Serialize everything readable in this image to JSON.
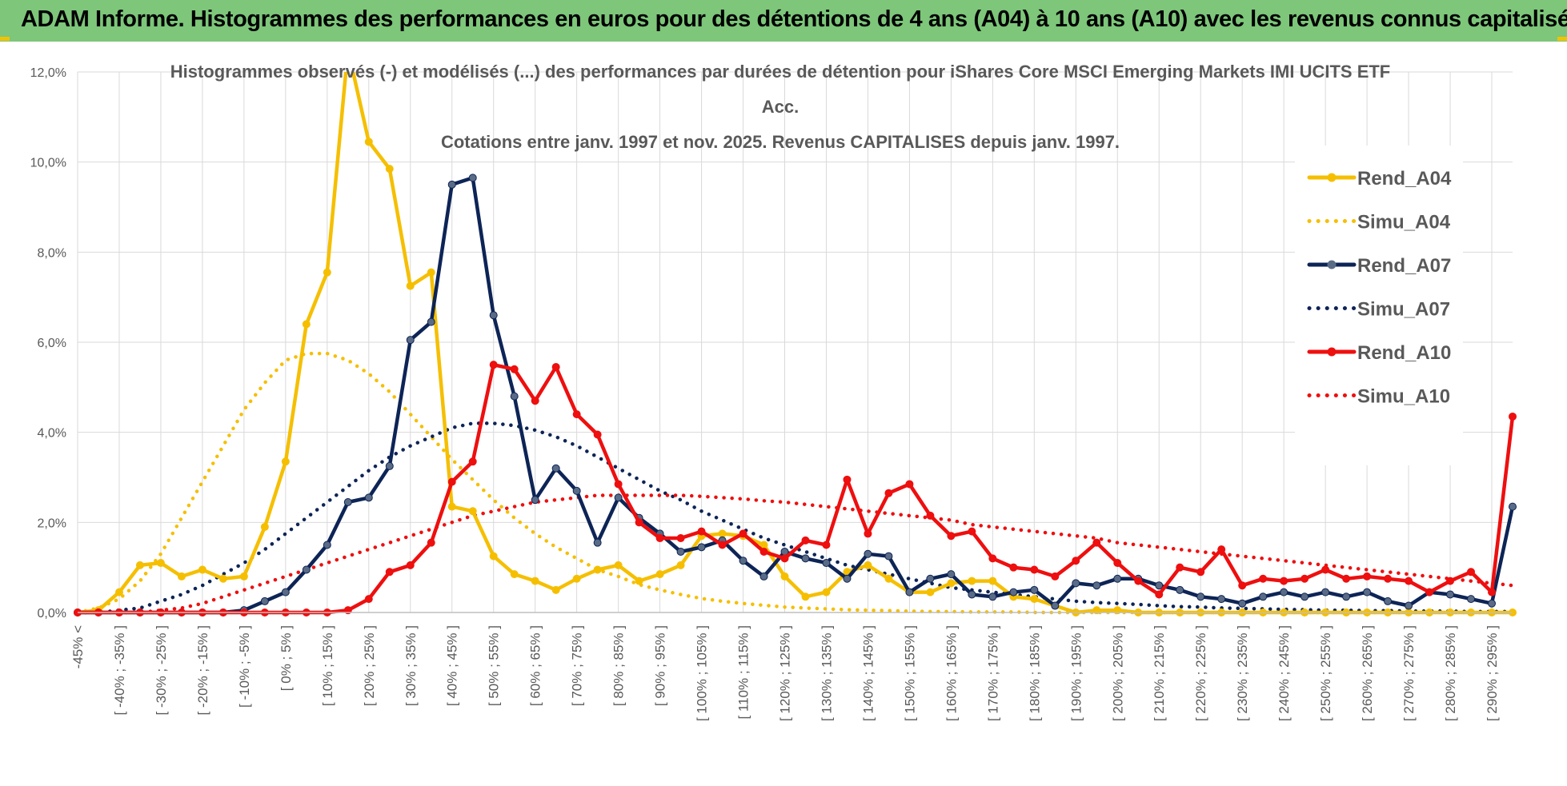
{
  "header": {
    "title": "ADAM Informe. Histogrammes des performances en euros pour des détentions de 4 ans (A04) à 10 ans (A10) avec les revenus connus capitalisés"
  },
  "colors": {
    "banner": "#7dc67a",
    "A04": "#f5bf00",
    "A07": "#0d2456",
    "A10": "#ee0f0f",
    "grid": "#d9d9d9",
    "text": "#595959"
  },
  "chart_data": {
    "type": "line",
    "title_lines": [
      "Histogrammes observés (-) et modélisés (...) des performances par durées de détention pour iShares Core MSCI Emerging Markets IMI UCITS ETF",
      "Acc.",
      "Cotations entre janv. 1997 et nov. 2025. Revenus CAPITALISES depuis janv. 1997."
    ],
    "ylim": [
      0,
      12
    ],
    "yticks": [
      "0,0%",
      "2,0%",
      "4,0%",
      "6,0%",
      "8,0%",
      "10,0%",
      "12,0%"
    ],
    "x_labels": [
      "-45% <",
      "[ -40% ; -35% ]",
      "[ -30% ; -25% ]",
      "[ -20% ; -15% ]",
      "[ -10% ; -5% ]",
      "[ 0% ; 5% ]",
      "[ 10% ; 15% ]",
      "[ 20% ; 25% ]",
      "[ 30% ; 35% ]",
      "[ 40% ; 45% ]",
      "[ 50% ; 55% ]",
      "[ 60% ; 65% ]",
      "[ 70% ; 75% ]",
      "[ 80% ; 85% ]",
      "[ 90% ; 95% ]",
      "[ 100% ; 105% ]",
      "[ 110% ; 115% ]",
      "[ 120% ; 125% ]",
      "[ 130% ; 135% ]",
      "[ 140% ; 145% ]",
      "[ 150% ; 155% ]",
      "[ 160% ; 165% ]",
      "[ 170% ; 175% ]",
      "[ 180% ; 185% ]",
      "[ 190% ; 195% ]",
      "[ 200% ; 205% ]",
      "[ 210% ; 215% ]",
      "[ 220% ; 225% ]",
      "[ 230% ; 235% ]",
      "[ 240% ; 245% ]",
      "[ 250% ; 255% ]",
      "[ 260% ; 265% ]",
      "[ 270% ; 275% ]",
      "[ 280% ; 285% ]",
      "[ 290% ; 295% ]"
    ],
    "num_points": 70,
    "series": [
      {
        "name": "Rend_A04",
        "style": "solid",
        "color": "#f5bf00",
        "values": [
          0,
          0.05,
          0.45,
          1.05,
          1.1,
          0.8,
          0.95,
          0.75,
          0.8,
          1.9,
          3.35,
          6.4,
          7.55,
          12.5,
          10.45,
          9.85,
          7.25,
          7.55,
          2.35,
          2.25,
          1.25,
          0.85,
          0.7,
          0.5,
          0.75,
          0.95,
          1.05,
          0.7,
          0.85,
          1.05,
          1.7,
          1.75,
          1.7,
          1.5,
          0.8,
          0.35,
          0.45,
          0.9,
          1.05,
          0.75,
          0.45,
          0.45,
          0.65,
          0.7,
          0.7,
          0.35,
          0.3,
          0.15,
          0,
          0.05,
          0.05,
          0,
          0,
          0,
          0,
          0,
          0,
          0,
          0,
          0,
          0,
          0,
          0,
          0,
          0,
          0,
          0,
          0,
          0,
          0
        ]
      },
      {
        "name": "Simu_A04",
        "style": "dotted",
        "color": "#f5bf00",
        "values": [
          0,
          0.1,
          0.3,
          0.7,
          1.3,
          2.1,
          2.9,
          3.7,
          4.5,
          5.1,
          5.6,
          5.75,
          5.75,
          5.6,
          5.3,
          4.9,
          4.4,
          3.9,
          3.4,
          2.95,
          2.5,
          2.1,
          1.75,
          1.45,
          1.2,
          0.95,
          0.8,
          0.62,
          0.5,
          0.4,
          0.31,
          0.25,
          0.2,
          0.16,
          0.12,
          0.1,
          0.08,
          0.06,
          0.05,
          0.04,
          0.03,
          0.02,
          0.02,
          0.01,
          0.01,
          0.01,
          0,
          0,
          0,
          0,
          0,
          0,
          0,
          0,
          0,
          0,
          0,
          0,
          0,
          0,
          0,
          0,
          0,
          0,
          0,
          0,
          0,
          0,
          0,
          0
        ]
      },
      {
        "name": "Rend_A07",
        "style": "solid",
        "color": "#0d2456",
        "values": [
          0,
          0,
          0,
          0,
          0,
          0,
          0,
          0,
          0.05,
          0.25,
          0.45,
          0.95,
          1.5,
          2.45,
          2.55,
          3.25,
          6.05,
          6.45,
          9.5,
          9.65,
          6.6,
          4.8,
          2.5,
          3.2,
          2.7,
          1.55,
          2.55,
          2.1,
          1.75,
          1.35,
          1.45,
          1.6,
          1.15,
          0.8,
          1.35,
          1.2,
          1.1,
          0.75,
          1.3,
          1.25,
          0.45,
          0.75,
          0.85,
          0.4,
          0.35,
          0.45,
          0.5,
          0.15,
          0.65,
          0.6,
          0.75,
          0.75,
          0.6,
          0.5,
          0.35,
          0.3,
          0.2,
          0.35,
          0.45,
          0.35,
          0.45,
          0.35,
          0.45,
          0.25,
          0.15,
          0.45,
          0.4,
          0.3,
          0.2,
          2.35
        ]
      },
      {
        "name": "Simu_A07",
        "style": "dotted",
        "color": "#0d2456",
        "values": [
          0,
          0,
          0.05,
          0.1,
          0.25,
          0.4,
          0.6,
          0.85,
          1.1,
          1.4,
          1.75,
          2.1,
          2.45,
          2.8,
          3.15,
          3.45,
          3.7,
          3.9,
          4.1,
          4.2,
          4.2,
          4.15,
          4.05,
          3.9,
          3.7,
          3.45,
          3.2,
          2.95,
          2.7,
          2.5,
          2.25,
          2.05,
          1.85,
          1.65,
          1.5,
          1.35,
          1.2,
          1.05,
          0.95,
          0.85,
          0.75,
          0.65,
          0.55,
          0.5,
          0.45,
          0.4,
          0.35,
          0.3,
          0.25,
          0.22,
          0.2,
          0.18,
          0.15,
          0.13,
          0.12,
          0.1,
          0.09,
          0.08,
          0.07,
          0.06,
          0.05,
          0.05,
          0.04,
          0.04,
          0.03,
          0.03,
          0.03,
          0.02,
          0.02,
          0.02
        ]
      },
      {
        "name": "Rend_A10",
        "style": "solid",
        "color": "#ee0f0f",
        "values": [
          0,
          0,
          0,
          0,
          0,
          0,
          0,
          0,
          0,
          0,
          0,
          0,
          0,
          0.05,
          0.3,
          0.9,
          1.05,
          1.55,
          2.9,
          3.35,
          5.5,
          5.4,
          4.7,
          5.45,
          4.4,
          3.95,
          2.85,
          2.0,
          1.65,
          1.65,
          1.8,
          1.5,
          1.75,
          1.35,
          1.2,
          1.6,
          1.5,
          2.95,
          1.75,
          2.65,
          2.85,
          2.15,
          1.7,
          1.8,
          1.2,
          1.0,
          0.95,
          0.8,
          1.15,
          1.55,
          1.1,
          0.7,
          0.4,
          1.0,
          0.9,
          1.4,
          0.6,
          0.75,
          0.7,
          0.75,
          0.95,
          0.75,
          0.8,
          0.75,
          0.7,
          0.45,
          0.7,
          0.9,
          0.45,
          4.35
        ]
      },
      {
        "name": "Simu_A10",
        "style": "dotted",
        "color": "#ee0f0f",
        "values": [
          0,
          0,
          0,
          0,
          0.05,
          0.1,
          0.2,
          0.35,
          0.5,
          0.65,
          0.8,
          0.95,
          1.1,
          1.25,
          1.4,
          1.55,
          1.7,
          1.85,
          2.0,
          2.15,
          2.25,
          2.35,
          2.45,
          2.5,
          2.55,
          2.6,
          2.6,
          2.6,
          2.6,
          2.6,
          2.58,
          2.55,
          2.52,
          2.48,
          2.45,
          2.4,
          2.35,
          2.3,
          2.25,
          2.2,
          2.15,
          2.1,
          2.05,
          1.95,
          1.9,
          1.85,
          1.8,
          1.75,
          1.7,
          1.65,
          1.55,
          1.5,
          1.45,
          1.4,
          1.35,
          1.3,
          1.25,
          1.2,
          1.15,
          1.1,
          1.05,
          1.0,
          0.95,
          0.9,
          0.85,
          0.8,
          0.75,
          0.7,
          0.65,
          0.6
        ]
      }
    ]
  }
}
